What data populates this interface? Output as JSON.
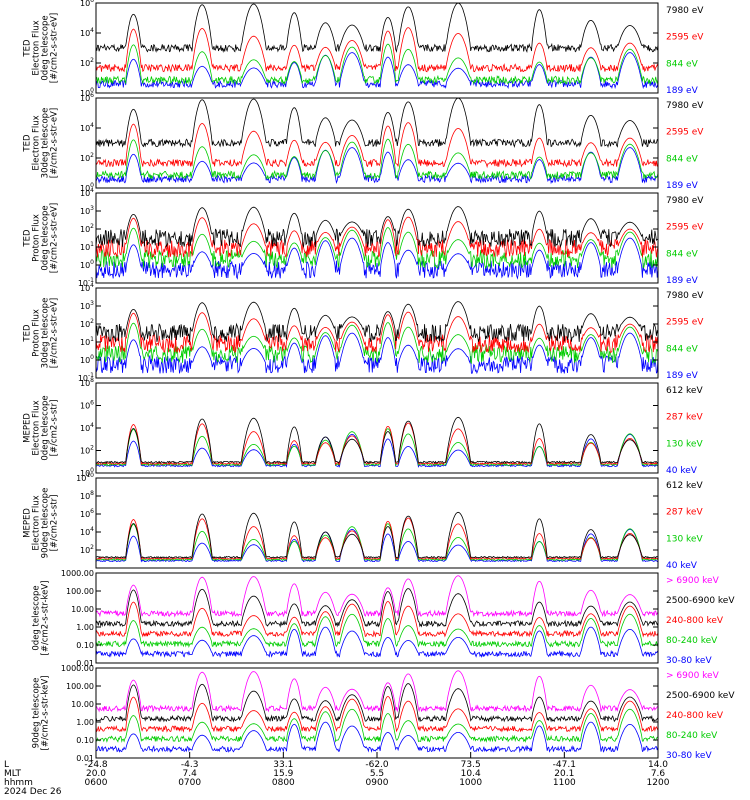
{
  "chart_data": {
    "type": "line",
    "date_label": "2024 Dec 26",
    "x_axis": {
      "row_labels": [
        "L",
        "MLT",
        "hhmm"
      ],
      "rows": [
        [
          "-24.8",
          "-4.3",
          "33.1",
          "-62.0",
          "73.5",
          "-47.1",
          "14.0"
        ],
        [
          "20.0",
          "7.4",
          "15.9",
          "5.5",
          "10.4",
          "20.1",
          "7.6"
        ],
        [
          "0600",
          "0700",
          "0800",
          "0900",
          "1000",
          "1100",
          "1200"
        ]
      ]
    },
    "panels": [
      {
        "ylabel_lines": [
          "TED",
          "Electron Flux",
          "0deg telescope",
          "[#/cm2-s-str-eV]"
        ],
        "log_min": 0,
        "log_max": 6,
        "ytick_labels": [
          "10^0",
          "10^2",
          "10^4",
          "10^6"
        ],
        "legend": [
          {
            "label": "7980 eV",
            "color": "#000000"
          },
          {
            "label": "2595 eV",
            "color": "#ff0000"
          },
          {
            "label": "844 eV",
            "color": "#00cc00"
          },
          {
            "label": "189 eV",
            "color": "#0000ff"
          }
        ]
      },
      {
        "ylabel_lines": [
          "TED",
          "Electron Flux",
          "30deg telescope",
          "[#/cm2-s-str-eV]"
        ],
        "log_min": 0,
        "log_max": 6,
        "ytick_labels": [
          "10^0",
          "10^2",
          "10^4",
          "10^6"
        ],
        "legend": [
          {
            "label": "7980 eV",
            "color": "#000000"
          },
          {
            "label": "2595 eV",
            "color": "#ff0000"
          },
          {
            "label": "844 eV",
            "color": "#00cc00"
          },
          {
            "label": "189 eV",
            "color": "#0000ff"
          }
        ]
      },
      {
        "ylabel_lines": [
          "TED",
          "Proton Flux",
          "0deg telescope",
          "[#/cm2-s-str-eV]"
        ],
        "log_min": -1,
        "log_max": 4,
        "ytick_labels": [
          "10^-1",
          "10^0",
          "10^1",
          "10^2",
          "10^3",
          "10^4"
        ],
        "legend": [
          {
            "label": "7980 eV",
            "color": "#000000"
          },
          {
            "label": "2595 eV",
            "color": "#ff0000"
          },
          {
            "label": "844 eV",
            "color": "#00cc00"
          },
          {
            "label": "189 eV",
            "color": "#0000ff"
          }
        ]
      },
      {
        "ylabel_lines": [
          "TED",
          "Proton Flux",
          "30deg telescope",
          "[#/cm2-s-str-eV]"
        ],
        "log_min": -1,
        "log_max": 4,
        "ytick_labels": [
          "10^-1",
          "10^0",
          "10^1",
          "10^2",
          "10^3",
          "10^4"
        ],
        "legend": [
          {
            "label": "7980 eV",
            "color": "#000000"
          },
          {
            "label": "2595 eV",
            "color": "#ff0000"
          },
          {
            "label": "844 eV",
            "color": "#00cc00"
          },
          {
            "label": "189 eV",
            "color": "#0000ff"
          }
        ]
      },
      {
        "ylabel_lines": [
          "MEPED",
          "Electron Flux",
          "0deg telescope",
          "[#/cm2-s-str]"
        ],
        "log_min": 0,
        "log_max": 8,
        "ytick_labels": [
          "10^0",
          "10^2",
          "10^4",
          "10^6",
          "10^8"
        ],
        "legend": [
          {
            "label": "612 keV",
            "color": "#000000"
          },
          {
            "label": "287 keV",
            "color": "#ff0000"
          },
          {
            "label": "130 keV",
            "color": "#00cc00"
          },
          {
            "label": "40 keV",
            "color": "#0000ff"
          }
        ]
      },
      {
        "ylabel_lines": [
          "MEPED",
          "Electron Flux",
          "90deg telescope",
          "[#/cm2-s-str]"
        ],
        "log_min": 0,
        "log_max": 10,
        "ytick_labels": [
          "10^2",
          "10^4",
          "10^6",
          "10^8",
          "10^10"
        ],
        "ytick_values": [
          2,
          4,
          6,
          8,
          10
        ],
        "legend": [
          {
            "label": "612 keV",
            "color": "#000000"
          },
          {
            "label": "287 keV",
            "color": "#ff0000"
          },
          {
            "label": "130 keV",
            "color": "#00cc00"
          },
          {
            "label": "40 keV",
            "color": "#0000ff"
          }
        ]
      },
      {
        "ylabel_lines": [
          "0deg telescope",
          "[#/cm2-s-str-keV]"
        ],
        "log_min": -2,
        "log_max": 3,
        "ytick_labels": [
          "0.01",
          "0.10",
          "1.00",
          "10.00",
          "100.00",
          "1000.00"
        ],
        "legend": [
          {
            "label": "> 6900 keV",
            "color": "#ff00ff"
          },
          {
            "label": "2500-6900 keV",
            "color": "#000000"
          },
          {
            "label": "240-800 keV",
            "color": "#ff0000"
          },
          {
            "label": "80-240 keV",
            "color": "#00cc00"
          },
          {
            "label": "30-80 keV",
            "color": "#0000ff"
          }
        ]
      },
      {
        "ylabel_lines": [
          "90deg telescope",
          "[#/cm2-s-str-keV]"
        ],
        "log_min": -2,
        "log_max": 3,
        "ytick_labels": [
          "0.01",
          "0.10",
          "1.00",
          "10.00",
          "100.00",
          "1000.00"
        ],
        "legend": [
          {
            "label": "> 6900 keV",
            "color": "#ff00ff"
          },
          {
            "label": "2500-6900 keV",
            "color": "#000000"
          },
          {
            "label": "240-800 keV",
            "color": "#ff0000"
          },
          {
            "label": "80-240 keV",
            "color": "#00cc00"
          },
          {
            "label": "30-80 keV",
            "color": "#0000ff"
          }
        ]
      }
    ],
    "pass_peaks_hhmm": [
      "0624",
      "0708",
      "0741",
      "0807",
      "0827",
      "0844",
      "0907",
      "0920",
      "0952",
      "1044",
      "1117",
      "1142"
    ]
  }
}
